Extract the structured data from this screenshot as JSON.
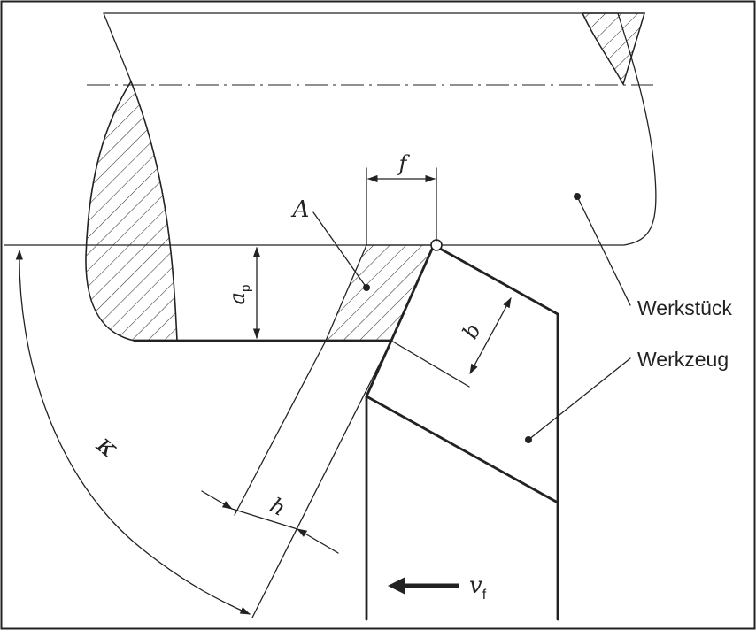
{
  "labels": {
    "feed": "f",
    "area": "A",
    "depth_main": "a",
    "depth_sub": "p",
    "width": "b",
    "thickness": "h",
    "angle": "κ",
    "workpiece": "Werkstück",
    "tool": "Werkzeug",
    "feed_velocity_main": "v",
    "feed_velocity_sub": "f"
  }
}
